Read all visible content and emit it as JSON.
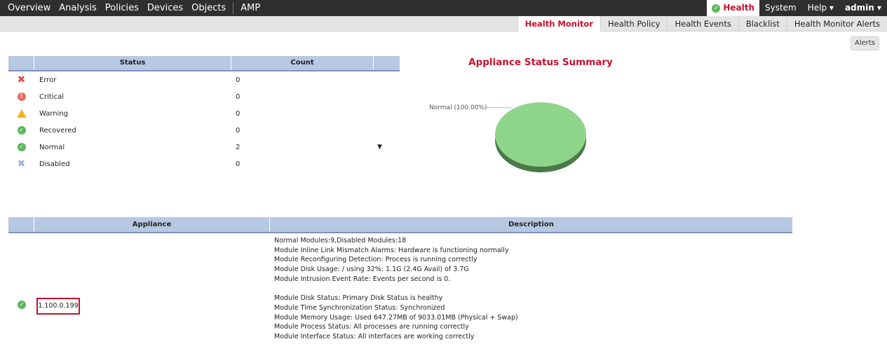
{
  "topnav": {
    "left": [
      "Overview",
      "Analysis",
      "Policies",
      "Devices",
      "Objects",
      "AMP"
    ],
    "health": "Health",
    "system": "System",
    "help": "Help ▾",
    "admin": "admin ▾"
  },
  "subnav": {
    "tabs": [
      "Health Monitor",
      "Health Policy",
      "Health Events",
      "Blacklist",
      "Health Monitor Alerts"
    ],
    "active": "Health Monitor"
  },
  "alerts_button": "Alerts",
  "status_table": {
    "headers": [
      "Status",
      "Count"
    ],
    "rows": [
      {
        "label": "Error",
        "count": "0",
        "icon": "error-icon"
      },
      {
        "label": "Critical",
        "count": "0",
        "icon": "critical-icon"
      },
      {
        "label": "Warning",
        "count": "0",
        "icon": "warning-icon"
      },
      {
        "label": "Recovered",
        "count": "0",
        "icon": "recovered-icon"
      },
      {
        "label": "Normal",
        "count": "2",
        "icon": "normal-icon"
      },
      {
        "label": "Disabled",
        "count": "0",
        "icon": "disabled-icon"
      }
    ]
  },
  "chart_data": {
    "type": "pie",
    "title": "Appliance Status Summary",
    "categories": [
      "Normal"
    ],
    "values": [
      100.0
    ],
    "labels": [
      "Normal (100.00%)"
    ],
    "colors": [
      "#8ed48a"
    ]
  },
  "appliance_table": {
    "headers": [
      "Appliance",
      "Description"
    ],
    "rows": [
      {
        "appliance": "1.100.0.199",
        "description": [
          "Normal Modules:9,Disabled Modules:18",
          "Module Inline Link Mismatch Alarms: Hardware is functioning normally",
          "Module Reconfiguring Detection: Process is running correctly",
          "Module Disk Usage: / using 32%: 1.1G (2.4G Avail) of 3.7G",
          "Module Intrusion Event Rate: Events per second is 0.",
          "",
          "Module Disk Status: Primary Disk Status is healthy",
          "Module Time Synchronization Status: Synchronized",
          "Module Memory Usage: Used 647.27MB of 9033.01MB (Physical + Swap)",
          "Module Process Status: All processes are running correctly",
          "Module Interface Status: All interfaces are working correctly"
        ]
      }
    ]
  }
}
